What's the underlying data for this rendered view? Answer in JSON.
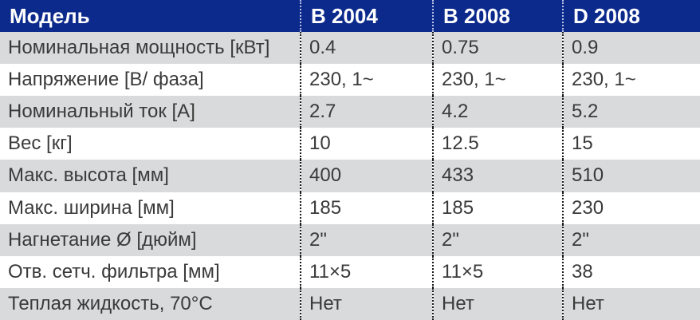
{
  "table": {
    "headers": [
      "Модель",
      "B 2004",
      "B 2008",
      "D 2008"
    ],
    "rows": [
      [
        "Номинальная мощность [кВт]",
        "0.4",
        "0.75",
        "0.9"
      ],
      [
        "Напряжение [В/ фаза]",
        "230, 1~",
        "230, 1~",
        "230, 1~"
      ],
      [
        "Номинальный ток [А]",
        "2.7",
        "4.2",
        "5.2"
      ],
      [
        "Вес [кг]",
        "10",
        "12.5",
        "15"
      ],
      [
        "Макс. высота [мм]",
        "400",
        "433",
        "510"
      ],
      [
        "Макс. ширина [мм]",
        "185",
        "185",
        "230"
      ],
      [
        "Нагнетание Ø [дюйм]",
        "2\"",
        "2\"",
        "2\""
      ],
      [
        "Отв. сетч. фильтра [мм]",
        "11×5",
        "11×5",
        "38"
      ],
      [
        "Теплая жидкость, 70°C",
        "Нет",
        "Нет",
        "Нет"
      ]
    ]
  },
  "colors": {
    "header_background": "#0c2a8c",
    "header_text": "#ffffff",
    "stripe_background": "#d9dadb",
    "body_text": "#3a3a3a"
  }
}
